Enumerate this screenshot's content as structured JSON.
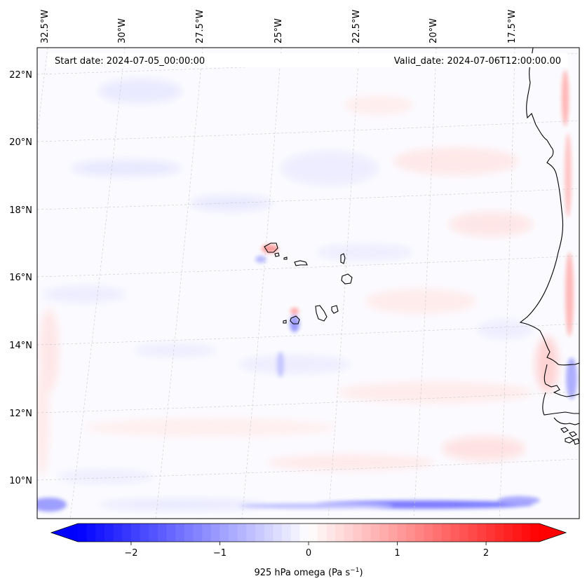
{
  "header": {
    "start_date": "Start date: 2024-07-05_00:00:00",
    "valid_date": "Valid_date: 2024-07-06T12:00:00.00"
  },
  "map": {
    "lon_labels": [
      "32.5°W",
      "30°W",
      "27.5°W",
      "25°W",
      "22.5°W",
      "20°W",
      "17.5°W"
    ],
    "lat_labels": [
      "22°N",
      "20°N",
      "18°N",
      "16°N",
      "14°N",
      "12°N",
      "10°N"
    ],
    "coastline_color": "#000000",
    "gridline_color": "#b0b0b0"
  },
  "colorbar": {
    "ticks": [
      "−2",
      "−1",
      "0",
      "1",
      "2"
    ],
    "tick_values": [
      -2,
      -1,
      0,
      1,
      2
    ],
    "range": [
      -2.6,
      2.6
    ],
    "label_main": "925 hPa omega (Pa s",
    "label_exp": "−1",
    "label_close": ")",
    "colormap": "bwr",
    "color_min": "#0000ff",
    "color_mid": "#ffffff",
    "color_max": "#ff0000"
  }
}
